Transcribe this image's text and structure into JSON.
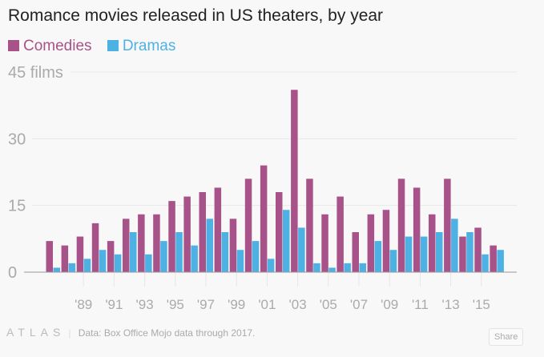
{
  "colors": {
    "comedies": "#a8528a",
    "dramas": "#4eb1e4"
  },
  "chart_data": {
    "type": "bar",
    "title": "Romance movies released in US theaters, by year",
    "x": [
      1987,
      1988,
      1989,
      1990,
      1991,
      1992,
      1993,
      1994,
      1995,
      1996,
      1997,
      1998,
      1999,
      2000,
      2001,
      2002,
      2003,
      2004,
      2005,
      2006,
      2007,
      2008,
      2009,
      2010,
      2011,
      2012,
      2013,
      2014,
      2015,
      2016
    ],
    "series": [
      {
        "name": "Comedies",
        "values": [
          7,
          6,
          8,
          11,
          7,
          12,
          13,
          13,
          16,
          17,
          18,
          19,
          12,
          21,
          24,
          18,
          41,
          21,
          13,
          17,
          9,
          13,
          14,
          21,
          19,
          13,
          21,
          8,
          10,
          6
        ]
      },
      {
        "name": "Dramas",
        "values": [
          1,
          2,
          3,
          5,
          4,
          9,
          4,
          7,
          9,
          6,
          12,
          9,
          5,
          7,
          3,
          14,
          10,
          2,
          1,
          2,
          2,
          7,
          5,
          8,
          8,
          9,
          12,
          9,
          4,
          5
        ]
      }
    ],
    "ylim": [
      0,
      45
    ],
    "yticks": [
      {
        "v": 0,
        "label": "0"
      },
      {
        "v": 15,
        "label": "15"
      },
      {
        "v": 30,
        "label": "30"
      },
      {
        "v": 45,
        "label": "45 films"
      }
    ],
    "xticks": [
      {
        "v": 1989,
        "label": "'89"
      },
      {
        "v": 1991,
        "label": "'91"
      },
      {
        "v": 1993,
        "label": "'93"
      },
      {
        "v": 1995,
        "label": "'95"
      },
      {
        "v": 1997,
        "label": "'97"
      },
      {
        "v": 1999,
        "label": "'99"
      },
      {
        "v": 2001,
        "label": "'01"
      },
      {
        "v": 2003,
        "label": "'03"
      },
      {
        "v": 2005,
        "label": "'05"
      },
      {
        "v": 2007,
        "label": "'07"
      },
      {
        "v": 2009,
        "label": "'09"
      },
      {
        "v": 2011,
        "label": "'11"
      },
      {
        "v": 2013,
        "label": "'13"
      },
      {
        "v": 2015,
        "label": "'15"
      }
    ],
    "legend": "top-left",
    "grid": true
  },
  "legend": {
    "comedies": "Comedies",
    "dramas": "Dramas"
  },
  "footer": {
    "logo": "ATLAS",
    "data_label": "Data:",
    "source": "Box Office Mojo data through 2017.",
    "share": "Share"
  }
}
